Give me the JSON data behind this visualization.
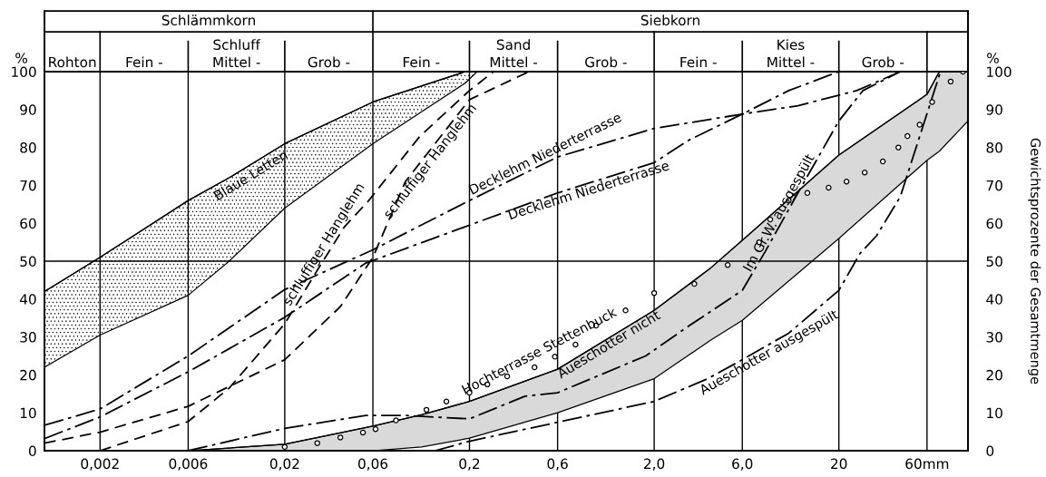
{
  "chart_data": {
    "type": "line",
    "ylabel": "%",
    "y2label": "Gewichtsprozente der Gesamtmenge",
    "annotations": [
      "Schlämmkorn",
      "Siebkorn",
      "Schluff",
      "Sand",
      "Kies",
      "Rohton",
      "Fein -",
      "Mittel -",
      "Grob -",
      "Fein -",
      "Mittel -",
      "Grob -",
      "Fein -",
      "Mittel -",
      "Grob -",
      "%"
    ],
    "log": "x",
    "xlim": [
      0.001,
      100
    ],
    "xticks": [
      {
        "value": 0.002,
        "label": "0,002"
      },
      {
        "value": 0.006,
        "label": "0,006"
      },
      {
        "value": 0.02,
        "label": "0,02"
      },
      {
        "value": 0.06,
        "label": "0,06"
      },
      {
        "value": 0.2,
        "label": "0,2"
      },
      {
        "value": 0.6,
        "label": "0,6"
      },
      {
        "value": 2,
        "label": "2,0"
      },
      {
        "value": 6,
        "label": "6,0"
      },
      {
        "value": 20,
        "label": "20"
      },
      {
        "value": 60,
        "label": "60mm"
      }
    ],
    "ylim": [
      0,
      100
    ],
    "yticks": [
      0,
      10,
      20,
      30,
      40,
      50,
      60,
      70,
      80,
      90,
      100
    ],
    "y2lim": [
      0,
      100
    ],
    "y2ticks": [
      0,
      10,
      20,
      30,
      40,
      50,
      60,
      70,
      80,
      90,
      100
    ],
    "grid": "x",
    "ref_lines": [
      {
        "axis": "y",
        "value": 50,
        "color": "#000000"
      }
    ],
    "series": [
      {
        "name": "Blaue Letten",
        "line_style": "solid",
        "color": "#000000",
        "x": [
          0.001,
          0.002,
          0.006,
          0.01,
          0.02,
          0.06,
          0.19,
          0.22
        ],
        "values": [
          42,
          51,
          66,
          72,
          81,
          92,
          100,
          100
        ],
        "lower": [
          22,
          30.5,
          41,
          50,
          64,
          81,
          97,
          100
        ],
        "upper": [
          42,
          51,
          66,
          72,
          81,
          92,
          100,
          100
        ]
      },
      {
        "name": "schluffiger Hanglehm",
        "line_style": "dashed",
        "color": "#000000",
        "x": [
          0.002,
          0.006,
          0.01,
          0.02,
          0.03,
          0.042,
          0.057,
          0.108,
          0.2,
          0.27
        ],
        "values": [
          0,
          7.7,
          16.5,
          33.5,
          47.6,
          59,
          66,
          83,
          95,
          100
        ]
      },
      {
        "name": "schluffiger Hanglehm",
        "line_style": "dashed",
        "color": "#000000",
        "x": [
          0.001,
          0.002,
          0.006,
          0.02,
          0.04,
          0.06,
          0.09,
          0.2,
          0.42
        ],
        "values": [
          2,
          4.9,
          11.7,
          24,
          38,
          51,
          71,
          92.6,
          100
        ]
      },
      {
        "name": "Decklehm Niederterrasse",
        "line_style": "dashdot",
        "color": "#000000",
        "x": [
          0.001,
          0.002,
          0.006,
          0.02,
          0.06,
          0.2,
          0.6,
          2,
          6,
          12,
          25,
          43
        ],
        "values": [
          6.7,
          11,
          25,
          42.5,
          53,
          66,
          77.5,
          85,
          88.8,
          91,
          95,
          100
        ]
      },
      {
        "name": "Decklehm Niederterrasse",
        "line_style": "dashdot",
        "color": "#000000",
        "x": [
          0.001,
          0.002,
          0.006,
          0.02,
          0.055,
          0.2,
          0.6,
          2,
          3.1,
          6,
          10.7,
          20
        ],
        "values": [
          3.2,
          8.9,
          20.8,
          35.2,
          49.5,
          59.5,
          68,
          76,
          82,
          88.8,
          95,
          100
        ]
      },
      {
        "name": "Hochterrasse Stettenbuck",
        "type": "scatter",
        "marker": "circle",
        "color": "#000000",
        "x": [
          0.02,
          0.03,
          0.04,
          0.053,
          0.062,
          0.08,
          0.117,
          0.15,
          0.2,
          0.25,
          0.32,
          0.45,
          0.58,
          0.75,
          0.97,
          1.4,
          2,
          3.3,
          5,
          7.4,
          8.5,
          10.7,
          13.5,
          17.6,
          22,
          27.6,
          34.6,
          42,
          47,
          54.7,
          64,
          80.6,
          94
        ],
        "values": [
          1,
          2,
          3.5,
          4.8,
          5.7,
          8,
          10.8,
          13,
          15.3,
          17.5,
          19.6,
          22,
          24.8,
          28,
          33,
          37,
          41.6,
          44,
          49,
          55,
          61,
          66,
          68,
          69.4,
          71,
          73.4,
          76.3,
          80,
          83,
          86,
          92,
          97.4,
          100
        ]
      },
      {
        "name": "Aueschotter nicht",
        "line_style": "solid",
        "color": "#000000",
        "x": [
          0.006,
          0.02,
          0.06,
          0.11,
          0.2,
          0.6,
          2,
          4,
          6,
          20,
          60,
          70,
          100
        ],
        "values": [
          0,
          1.7,
          6.5,
          9.5,
          13,
          21.5,
          37,
          48,
          55.5,
          78,
          94,
          100,
          100
        ],
        "lower": [
          0,
          0,
          0,
          1,
          3.3,
          10,
          19,
          29,
          34.4,
          56,
          76.6,
          79,
          87
        ],
        "upper": [
          0,
          1.7,
          6.5,
          9.5,
          13,
          21.5,
          37,
          48,
          55.5,
          78,
          94,
          100,
          100
        ]
      },
      {
        "name": "Aueschotter ausgespült",
        "line_style": "dashdot",
        "color": "#000000",
        "x": [
          0.13,
          0.2,
          0.6,
          2,
          3.9,
          6,
          10.7,
          20,
          26,
          32,
          43,
          71
        ],
        "values": [
          0,
          2.5,
          7.5,
          13,
          19,
          24,
          31,
          42.3,
          52,
          56.7,
          67,
          100
        ]
      },
      {
        "name": "Im Gr.W. ausgespült",
        "line_style": "dashdot",
        "color": "#000000",
        "x": [
          0.006,
          0.02,
          0.055,
          0.09,
          0.2,
          0.4,
          0.6,
          1.8,
          3.1,
          6,
          8,
          12,
          20,
          27,
          43
        ],
        "values": [
          0,
          5.9,
          9.3,
          9.3,
          8.4,
          14.4,
          15.3,
          25,
          33,
          42.3,
          52.6,
          68,
          87,
          95,
          100
        ]
      }
    ]
  }
}
